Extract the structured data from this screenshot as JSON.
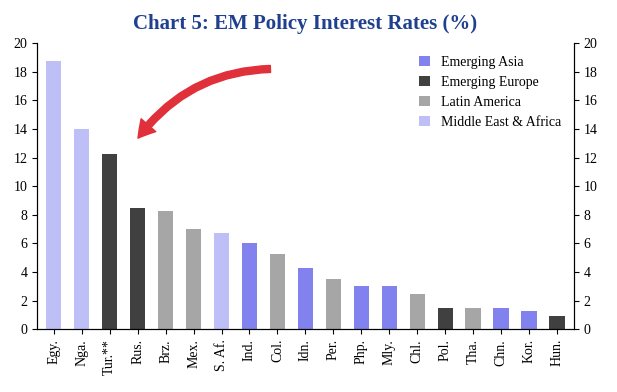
{
  "chart_data": {
    "type": "bar",
    "title": "Chart 5: EM Policy Interest Rates (%)",
    "categories": [
      "Egy.",
      "Nga.",
      "Tur.**",
      "Rus.",
      "Brz.",
      "Mex.",
      "S. Af.",
      "Ind.",
      "Col.",
      "Idn.",
      "Per.",
      "Php.",
      "Mly.",
      "Chl.",
      "Pol.",
      "Tha.",
      "Chn.",
      "Kor.",
      "Hun."
    ],
    "series": [
      {
        "name": "Emerging Asia",
        "color": "#8282ee",
        "values": [
          null,
          null,
          null,
          null,
          null,
          null,
          null,
          6.0,
          null,
          4.25,
          null,
          3.0,
          3.0,
          null,
          null,
          null,
          1.5,
          1.25,
          null
        ]
      },
      {
        "name": "Emerging Europe",
        "color": "#404040",
        "values": [
          null,
          null,
          12.25,
          8.5,
          null,
          null,
          null,
          null,
          null,
          null,
          null,
          null,
          null,
          null,
          1.5,
          null,
          null,
          null,
          0.9
        ]
      },
      {
        "name": "Latin America",
        "color": "#a6a6a6",
        "values": [
          null,
          null,
          null,
          null,
          8.25,
          7.0,
          null,
          null,
          5.25,
          null,
          3.5,
          null,
          null,
          2.5,
          null,
          1.5,
          null,
          null,
          null
        ]
      },
      {
        "name": "Middle East & Africa",
        "color": "#bfbff7",
        "values": [
          18.75,
          14.0,
          null,
          null,
          null,
          null,
          6.75,
          null,
          null,
          null,
          null,
          null,
          null,
          null,
          null,
          null,
          null,
          null,
          null
        ]
      }
    ],
    "ylim": [
      0,
      20
    ],
    "yticks": [
      0,
      2,
      4,
      6,
      8,
      10,
      12,
      14,
      16,
      18,
      20
    ],
    "y2lim": [
      0,
      20
    ],
    "y2ticks": [
      0,
      2,
      4,
      6,
      8,
      10,
      12,
      14,
      16,
      18,
      20
    ],
    "grid": false,
    "legend": "upper right"
  }
}
